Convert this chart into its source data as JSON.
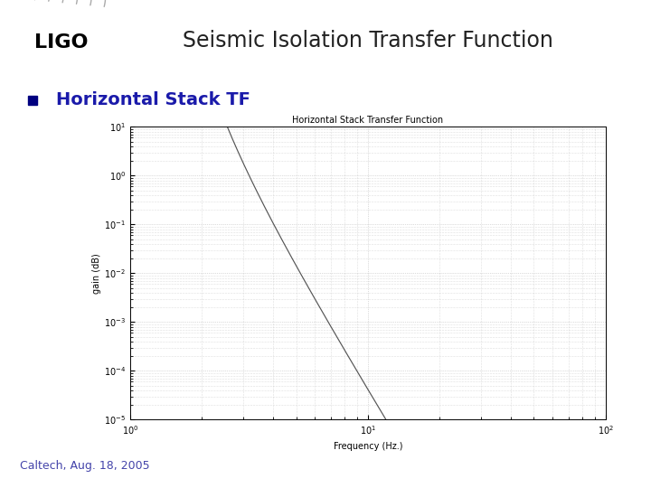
{
  "title": "Seismic Isolation Transfer Function",
  "subtitle": "Horizontal Stack TF",
  "inner_title": "Horizontal Stack Transfer Function",
  "xlabel": "Frequency (Hz.)",
  "ylabel": "gain (dB)",
  "footer": "Caltech, Aug. 18, 2005",
  "line_color": "#555555",
  "background_color": "#ffffff",
  "grid_color": "#bbbbbb",
  "bullet_color": "#000080",
  "title_color": "#222222",
  "subtitle_color": "#1a1aaa",
  "footer_color": "#4444aa",
  "separator_color": "#cc0066",
  "logo_arc_color": "#aaaaaa",
  "tick_label_fontsize": 7,
  "inner_title_fontsize": 7,
  "xlabel_fontsize": 7,
  "ylabel_fontsize": 7
}
